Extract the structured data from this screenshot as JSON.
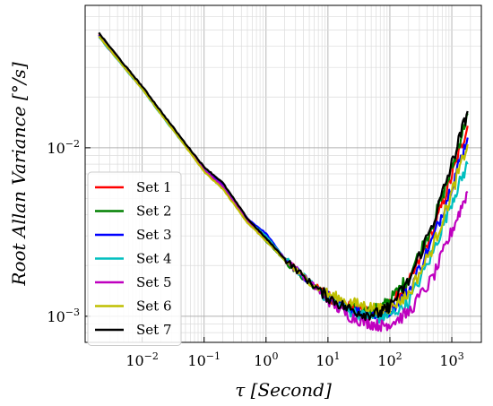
{
  "chart_data": {
    "type": "line",
    "xlabel": "τ [Second]",
    "ylabel": "Root Allan Variance [°/s]",
    "x_scale": "log",
    "y_scale": "log",
    "xlim": [
      0.0012,
      3000
    ],
    "ylim": [
      0.0007,
      0.07
    ],
    "grid": true,
    "legend_position": "lower-left",
    "x_ticks": [
      {
        "value": 0.01,
        "mantissa": "10",
        "exp": "−2"
      },
      {
        "value": 0.1,
        "mantissa": "10",
        "exp": "−1"
      },
      {
        "value": 1,
        "mantissa": "10",
        "exp": "0"
      },
      {
        "value": 10,
        "mantissa": "10",
        "exp": "1"
      },
      {
        "value": 100,
        "mantissa": "10",
        "exp": "2"
      },
      {
        "value": 1000,
        "mantissa": "10",
        "exp": "3"
      }
    ],
    "y_ticks": [
      {
        "value": 0.001,
        "mantissa": "10",
        "exp": "−3"
      },
      {
        "value": 0.01,
        "mantissa": "10",
        "exp": "−2"
      }
    ],
    "series": [
      {
        "name": "Set 1",
        "color": "#ff0000",
        "x": [
          0.002,
          0.005,
          0.01,
          0.02,
          0.05,
          0.1,
          0.2,
          0.5,
          1,
          2,
          5,
          10,
          20,
          40,
          70,
          100,
          200,
          500,
          1000,
          1800
        ],
        "y": [
          0.047,
          0.031,
          0.023,
          0.0163,
          0.0105,
          0.0076,
          0.0061,
          0.0038,
          0.0029,
          0.0022,
          0.0016,
          0.00132,
          0.00115,
          0.00108,
          0.00108,
          0.00118,
          0.00155,
          0.0032,
          0.0068,
          0.0135
        ]
      },
      {
        "name": "Set 2",
        "color": "#008000",
        "x": [
          0.002,
          0.005,
          0.01,
          0.02,
          0.05,
          0.1,
          0.2,
          0.5,
          1,
          2,
          5,
          10,
          20,
          40,
          70,
          100,
          200,
          500,
          1000,
          1800
        ],
        "y": [
          0.046,
          0.0305,
          0.0225,
          0.016,
          0.0103,
          0.0074,
          0.0059,
          0.0037,
          0.0028,
          0.00215,
          0.00158,
          0.0013,
          0.00113,
          0.00106,
          0.00112,
          0.00125,
          0.0017,
          0.0036,
          0.0075,
          0.016
        ]
      },
      {
        "name": "Set 3",
        "color": "#0000ff",
        "x": [
          0.002,
          0.005,
          0.01,
          0.02,
          0.05,
          0.1,
          0.2,
          0.5,
          1,
          2,
          5,
          10,
          20,
          40,
          70,
          100,
          200,
          500,
          1000,
          1800
        ],
        "y": [
          0.0465,
          0.0308,
          0.0228,
          0.0161,
          0.0104,
          0.0075,
          0.006,
          0.0038,
          0.0031,
          0.0022,
          0.0016,
          0.0013,
          0.00112,
          0.00103,
          0.00102,
          0.00108,
          0.0014,
          0.0029,
          0.006,
          0.0115
        ]
      },
      {
        "name": "Set 4",
        "color": "#00bfbf",
        "x": [
          0.002,
          0.005,
          0.01,
          0.02,
          0.05,
          0.1,
          0.2,
          0.5,
          1,
          2,
          5,
          10,
          20,
          40,
          70,
          100,
          200,
          500,
          1000,
          1800
        ],
        "y": [
          0.0455,
          0.0302,
          0.0223,
          0.0158,
          0.0102,
          0.0074,
          0.0059,
          0.0037,
          0.003,
          0.0022,
          0.0016,
          0.00128,
          0.00109,
          0.001,
          0.00098,
          0.00102,
          0.0012,
          0.0024,
          0.0048,
          0.008
        ]
      },
      {
        "name": "Set 5",
        "color": "#bf00bf",
        "x": [
          0.002,
          0.005,
          0.01,
          0.02,
          0.05,
          0.1,
          0.2,
          0.5,
          1,
          2,
          5,
          10,
          20,
          40,
          70,
          100,
          200,
          500,
          1000,
          1800
        ],
        "y": [
          0.046,
          0.0305,
          0.0225,
          0.016,
          0.0103,
          0.0074,
          0.0059,
          0.0037,
          0.0029,
          0.0022,
          0.0016,
          0.00125,
          0.00102,
          0.00092,
          0.00088,
          0.0009,
          0.00105,
          0.0017,
          0.0032,
          0.0055
        ]
      },
      {
        "name": "Set 6",
        "color": "#bfbf00",
        "x": [
          0.002,
          0.005,
          0.01,
          0.02,
          0.05,
          0.1,
          0.2,
          0.5,
          1,
          2,
          5,
          10,
          20,
          40,
          70,
          100,
          200,
          500,
          1000,
          1800
        ],
        "y": [
          0.046,
          0.0304,
          0.0224,
          0.0159,
          0.0102,
          0.0072,
          0.0057,
          0.0036,
          0.0028,
          0.00215,
          0.0016,
          0.00135,
          0.00122,
          0.00115,
          0.0011,
          0.00112,
          0.00135,
          0.0026,
          0.0054,
          0.0105
        ]
      },
      {
        "name": "Set 7",
        "color": "#000000",
        "x": [
          0.002,
          0.005,
          0.01,
          0.02,
          0.05,
          0.1,
          0.2,
          0.5,
          1,
          2,
          5,
          10,
          20,
          40,
          70,
          100,
          200,
          500,
          1000,
          1800
        ],
        "y": [
          0.048,
          0.0315,
          0.0232,
          0.0165,
          0.0106,
          0.0077,
          0.0062,
          0.0038,
          0.0029,
          0.0022,
          0.0016,
          0.0013,
          0.00112,
          0.00103,
          0.00104,
          0.00115,
          0.0016,
          0.0036,
          0.008,
          0.0165
        ]
      }
    ]
  }
}
